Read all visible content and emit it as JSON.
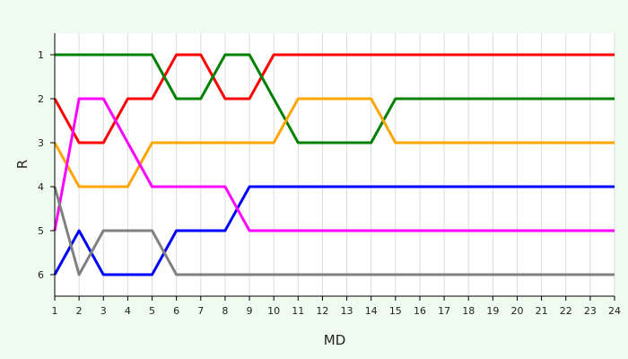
{
  "chart_data": {
    "type": "line",
    "xlabel": "MD",
    "ylabel": "R",
    "x": [
      1,
      2,
      3,
      4,
      5,
      6,
      7,
      8,
      9,
      10,
      11,
      12,
      13,
      14,
      15,
      16,
      17,
      18,
      19,
      20,
      21,
      22,
      23,
      24
    ],
    "xlim": [
      1,
      24
    ],
    "ylim": [
      1,
      6
    ],
    "y_inverted": true,
    "y_ticks": [
      1,
      2,
      3,
      4,
      5,
      6
    ],
    "grid": "vertical",
    "series": [
      {
        "color": "#ff0000",
        "values": [
          2,
          3,
          3,
          2,
          2,
          1,
          1,
          2,
          2,
          1,
          1,
          1,
          1,
          1,
          1,
          1,
          1,
          1,
          1,
          1,
          1,
          1,
          1,
          1
        ]
      },
      {
        "color": "#008000",
        "values": [
          1,
          1,
          1,
          1,
          1,
          2,
          2,
          1,
          1,
          2,
          3,
          3,
          3,
          3,
          2,
          2,
          2,
          2,
          2,
          2,
          2,
          2,
          2,
          2
        ]
      },
      {
        "color": "#ffa500",
        "values": [
          3,
          4,
          4,
          4,
          3,
          3,
          3,
          3,
          3,
          3,
          2,
          2,
          2,
          2,
          3,
          3,
          3,
          3,
          3,
          3,
          3,
          3,
          3,
          3
        ]
      },
      {
        "color": "#0000ff",
        "values": [
          6,
          5,
          6,
          6,
          6,
          5,
          5,
          5,
          4,
          4,
          4,
          4,
          4,
          4,
          4,
          4,
          4,
          4,
          4,
          4,
          4,
          4,
          4,
          4
        ]
      },
      {
        "color": "#ff00ff",
        "values": [
          5,
          2,
          2,
          3,
          4,
          4,
          4,
          4,
          5,
          5,
          5,
          5,
          5,
          5,
          5,
          5,
          5,
          5,
          5,
          5,
          5,
          5,
          5,
          5
        ]
      },
      {
        "color": "#808080",
        "values": [
          4,
          6,
          5,
          5,
          5,
          6,
          6,
          6,
          6,
          6,
          6,
          6,
          6,
          6,
          6,
          6,
          6,
          6,
          6,
          6,
          6,
          6,
          6,
          6
        ]
      }
    ]
  }
}
